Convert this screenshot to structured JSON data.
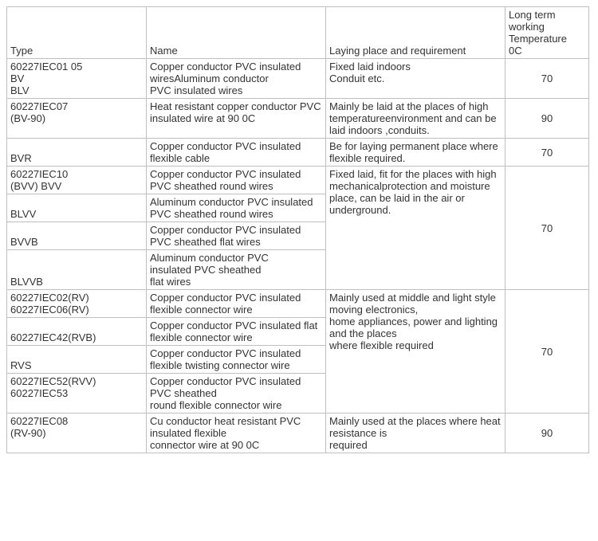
{
  "headers": {
    "type": "Type",
    "name": "Name",
    "laying": "Laying place and requirement",
    "temp": "Long term\nworking\nTemperature\n0C"
  },
  "rows": {
    "r1": {
      "type": "60227IEC01  05\nBV\nBLV",
      "name": "Copper conductor PVC insulated wiresAluminum conductor\nPVC insulated wires",
      "lay": "Fixed laid indoors\nConduit etc.",
      "temp": "70"
    },
    "r2": {
      "type": "60227IEC07\n(BV-90)",
      "name": "Heat resistant copper conductor PVC insulated wire at 90 0C",
      "lay": "Mainly be laid at the places of high temperatureenvironment and can be laid indoors ,conduits.",
      "temp": "90"
    },
    "r3": {
      "type": "BVR",
      "name": "Copper conductor PVC insulated flexible cable",
      "lay": "Be for laying permanent place where flexible required.",
      "temp": "70"
    },
    "g1_type1": "60227IEC10\n(BVV) BVV",
    "g1_name1": "Copper conductor PVC insulated PVC sheathed round wires",
    "g1_type2": "BLVV",
    "g1_name2": "Aluminum conductor PVC insulated PVC sheathed round wires",
    "g1_type3": "BVVB",
    "g1_name3": "Copper conductor PVC insulated PVC sheathed flat wires",
    "g1_type4": "BLVVB",
    "g1_name4": "Aluminum conductor PVC\ninsulated PVC sheathed\nflat wires",
    "g1_lay": "Fixed laid, fit for the places with high mechanicalprotection and moisture place, can be laid in the air or underground.",
    "g1_temp": "70",
    "g2_type1": "60227IEC02(RV)\n60227IEC06(RV)",
    "g2_name1": "Copper conductor PVC insulated flexible connector wire",
    "g2_type2": "60227IEC42(RVB)",
    "g2_name2": "Copper conductor PVC insulated flat flexible connector wire",
    "g2_type3": "RVS",
    "g2_name3": "Copper conductor PVC insulated flexible twisting connector wire",
    "g2_type4": "60227IEC52(RVV)\n60227IEC53",
    "g2_name4": "Copper conductor PVC insulated PVC sheathed\nround flexible connector wire",
    "g2_lay": "Mainly used at middle and light style moving electronics,\nhome appliances, power and lighting and the places\nwhere flexible required",
    "g2_temp": "70",
    "r4": {
      "type": "60227IEC08\n(RV-90)",
      "name": "Cu conductor heat resistant PVC insulated flexible\nconnector wire at 90 0C",
      "lay": "Mainly used at the places where heat resistance is\nrequired",
      "temp": "90"
    }
  }
}
